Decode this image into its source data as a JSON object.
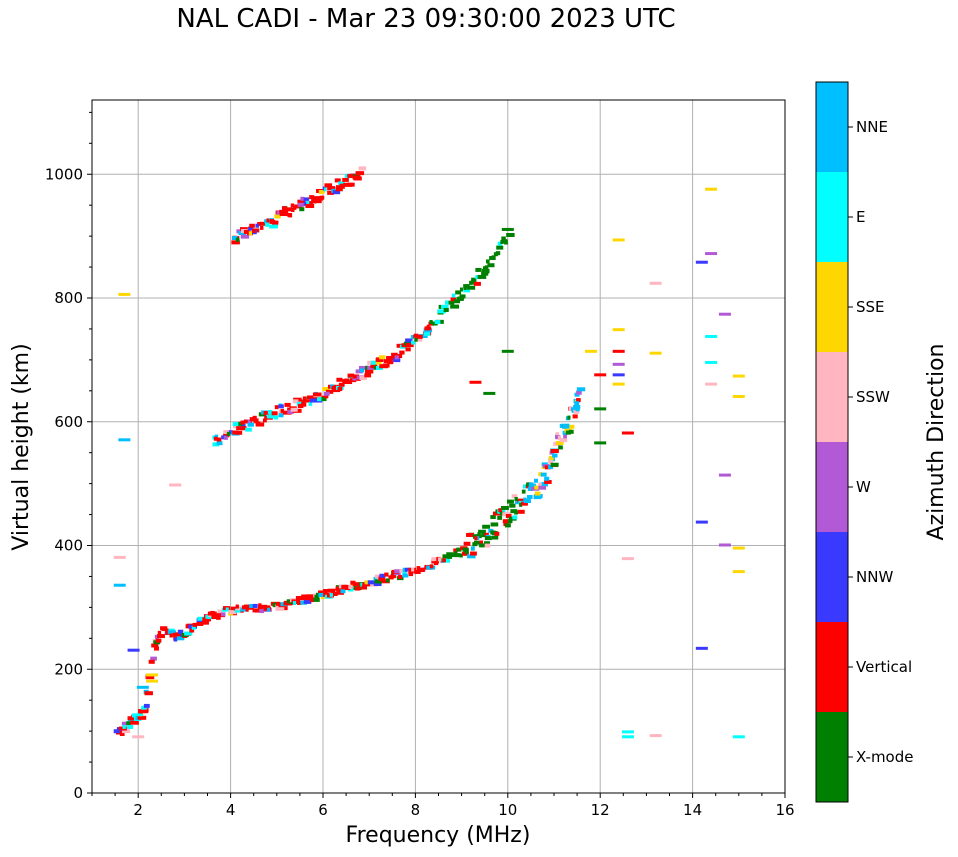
{
  "title": "NAL CADI - Mar 23 09:30:00 2023 UTC",
  "chart_data": {
    "type": "scatter",
    "title": "NAL CADI - Mar 23 09:30:00 2023 UTC",
    "xlabel": "Frequency (MHz)",
    "ylabel": "Virtual height (km)",
    "xlim": [
      1,
      16
    ],
    "ylim": [
      0,
      1120
    ],
    "xticks": [
      2,
      4,
      6,
      8,
      10,
      12,
      14,
      16
    ],
    "yticks": [
      0,
      200,
      400,
      600,
      800,
      1000
    ],
    "grid": true,
    "colorbar": {
      "label": "Azimuth Direction",
      "categories": [
        {
          "name": "X-mode",
          "color": "#008000"
        },
        {
          "name": "Vertical",
          "color": "#ff0000"
        },
        {
          "name": "NNW",
          "color": "#3a3aff"
        },
        {
          "name": "W",
          "color": "#b25ad6"
        },
        {
          "name": "SSW",
          "color": "#ffb6c1"
        },
        {
          "name": "SSE",
          "color": "#ffd700"
        },
        {
          "name": "E",
          "color": "#00ffff"
        },
        {
          "name": "NNE",
          "color": "#00bfff"
        }
      ]
    },
    "traces": [
      {
        "name": "E/F1 echo trace",
        "points": [
          [
            1.5,
            100
          ],
          [
            1.8,
            120
          ],
          [
            2.0,
            130
          ],
          [
            2.1,
            140
          ],
          [
            2.3,
            240
          ],
          [
            2.5,
            265
          ],
          [
            2.8,
            255
          ],
          [
            3.0,
            265
          ],
          [
            3.3,
            280
          ],
          [
            3.6,
            290
          ],
          [
            4.0,
            300
          ],
          [
            4.5,
            300
          ],
          [
            5.0,
            305
          ],
          [
            5.5,
            315
          ],
          [
            6.0,
            325
          ],
          [
            6.5,
            335
          ],
          [
            7.0,
            345
          ],
          [
            7.5,
            355
          ],
          [
            8.0,
            365
          ],
          [
            8.5,
            380
          ],
          [
            9.0,
            395
          ],
          [
            9.3,
            410
          ],
          [
            9.6,
            430
          ],
          [
            10.0,
            460
          ],
          [
            10.3,
            480
          ],
          [
            10.6,
            500
          ],
          [
            10.8,
            530
          ],
          [
            11.0,
            560
          ],
          [
            11.2,
            590
          ],
          [
            11.4,
            620
          ],
          [
            11.5,
            650
          ]
        ]
      },
      {
        "name": "F2 trace (2-hop)",
        "points": [
          [
            3.6,
            570
          ],
          [
            4.0,
            590
          ],
          [
            4.5,
            605
          ],
          [
            5.0,
            620
          ],
          [
            5.5,
            635
          ],
          [
            6.0,
            650
          ],
          [
            6.5,
            670
          ],
          [
            7.0,
            690
          ],
          [
            7.5,
            710
          ],
          [
            8.0,
            740
          ],
          [
            8.4,
            770
          ],
          [
            8.8,
            800
          ],
          [
            9.2,
            830
          ],
          [
            9.6,
            860
          ],
          [
            10.0,
            910
          ]
        ]
      },
      {
        "name": "F2 trace (3-hop)",
        "points": [
          [
            4.0,
            900
          ],
          [
            4.5,
            915
          ],
          [
            5.0,
            935
          ],
          [
            5.5,
            955
          ],
          [
            6.0,
            975
          ],
          [
            6.5,
            995
          ],
          [
            6.8,
            1012
          ]
        ]
      }
    ],
    "scattered_points": [
      {
        "f": 12.4,
        "h": 893,
        "az": "SSE"
      },
      {
        "f": 12.4,
        "h": 748,
        "az": "SSE"
      },
      {
        "f": 12.4,
        "h": 713,
        "az": "Vertical"
      },
      {
        "f": 12.4,
        "h": 692,
        "az": "W"
      },
      {
        "f": 12.4,
        "h": 675,
        "az": "NNW"
      },
      {
        "f": 12.4,
        "h": 660,
        "az": "SSE"
      },
      {
        "f": 12.6,
        "h": 581,
        "az": "Vertical"
      },
      {
        "f": 12.6,
        "h": 378,
        "az": "SSW"
      },
      {
        "f": 12.6,
        "h": 98,
        "az": "E"
      },
      {
        "f": 12.6,
        "h": 90,
        "az": "E"
      },
      {
        "f": 13.2,
        "h": 823,
        "az": "SSW"
      },
      {
        "f": 13.2,
        "h": 710,
        "az": "SSE"
      },
      {
        "f": 13.2,
        "h": 92,
        "az": "SSW"
      },
      {
        "f": 14.4,
        "h": 975,
        "az": "SSE"
      },
      {
        "f": 14.4,
        "h": 871,
        "az": "W"
      },
      {
        "f": 14.2,
        "h": 857,
        "az": "NNW"
      },
      {
        "f": 14.4,
        "h": 737,
        "az": "E"
      },
      {
        "f": 14.4,
        "h": 695,
        "az": "E"
      },
      {
        "f": 14.4,
        "h": 660,
        "az": "SSW"
      },
      {
        "f": 14.7,
        "h": 773,
        "az": "W"
      },
      {
        "f": 14.7,
        "h": 513,
        "az": "W"
      },
      {
        "f": 14.2,
        "h": 437,
        "az": "NNW"
      },
      {
        "f": 14.7,
        "h": 400,
        "az": "W"
      },
      {
        "f": 15.0,
        "h": 395,
        "az": "SSE"
      },
      {
        "f": 15.0,
        "h": 357,
        "az": "SSE"
      },
      {
        "f": 15.0,
        "h": 673,
        "az": "SSE"
      },
      {
        "f": 15.0,
        "h": 640,
        "az": "SSE"
      },
      {
        "f": 14.2,
        "h": 233,
        "az": "NNW"
      },
      {
        "f": 15.0,
        "h": 90,
        "az": "E"
      },
      {
        "f": 1.7,
        "h": 805,
        "az": "SSE"
      },
      {
        "f": 1.7,
        "h": 570,
        "az": "NNE"
      },
      {
        "f": 2.8,
        "h": 497,
        "az": "SSW"
      },
      {
        "f": 1.6,
        "h": 380,
        "az": "SSW"
      },
      {
        "f": 1.6,
        "h": 335,
        "az": "NNE"
      },
      {
        "f": 1.9,
        "h": 230,
        "az": "NNW"
      },
      {
        "f": 2.3,
        "h": 190,
        "az": "SSE"
      },
      {
        "f": 2.3,
        "h": 180,
        "az": "SSE"
      },
      {
        "f": 2.1,
        "h": 170,
        "az": "NNE"
      },
      {
        "f": 2.0,
        "h": 90,
        "az": "SSW"
      },
      {
        "f": 10.0,
        "h": 713,
        "az": "X-mode"
      },
      {
        "f": 9.3,
        "h": 663,
        "az": "Vertical"
      },
      {
        "f": 9.6,
        "h": 645,
        "az": "X-mode"
      },
      {
        "f": 10.0,
        "h": 910,
        "az": "X-mode"
      },
      {
        "f": 11.8,
        "h": 713,
        "az": "SSE"
      },
      {
        "f": 12.0,
        "h": 675,
        "az": "Vertical"
      },
      {
        "f": 12.0,
        "h": 565,
        "az": "X-mode"
      },
      {
        "f": 12.0,
        "h": 620,
        "az": "X-mode"
      }
    ]
  }
}
